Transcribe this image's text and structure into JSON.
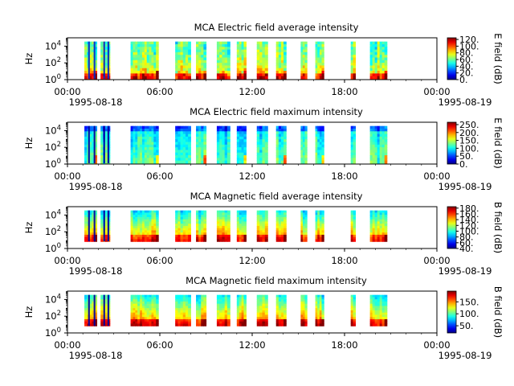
{
  "chart_data": [
    {
      "type": "heatmap",
      "title": "MCA  Electric field average intensity",
      "ylabel": "Hz",
      "yscale": "log",
      "y_tick_labels": [
        "10^0",
        "10^2",
        "10^4"
      ],
      "x_tick_labels": [
        "00:00",
        "06:00",
        "12:00",
        "18:00",
        "00:00"
      ],
      "x_date_labels": [
        "1995-08-18",
        "1995-08-19"
      ],
      "colorbar_label": "E field (dB)",
      "colorbar_ticks": [
        "0.",
        "20.",
        "40.",
        "60.",
        "80.",
        "100.",
        "120."
      ],
      "colorbar_range": [
        0,
        125
      ],
      "data_intervals_hours": [
        [
          1.1,
          1.9
        ],
        [
          2.15,
          2.75
        ],
        [
          4.1,
          5.9
        ],
        [
          7.0,
          8.0
        ],
        [
          8.35,
          9.0
        ],
        [
          9.7,
          10.55
        ],
        [
          11.0,
          11.6
        ],
        [
          12.3,
          13.0
        ],
        [
          13.55,
          14.2
        ],
        [
          15.15,
          15.55
        ],
        [
          16.1,
          16.65
        ],
        [
          18.4,
          18.7
        ],
        [
          19.65,
          20.75
        ]
      ],
      "cmap": "jet"
    },
    {
      "type": "heatmap",
      "title": "MCA  Electric field maximum intensity",
      "ylabel": "Hz",
      "yscale": "log",
      "y_tick_labels": [
        "10^0",
        "10^2",
        "10^4"
      ],
      "x_tick_labels": [
        "00:00",
        "06:00",
        "12:00",
        "18:00",
        "00:00"
      ],
      "x_date_labels": [
        "1995-08-18",
        "1995-08-19"
      ],
      "colorbar_label": "E field (dB)",
      "colorbar_ticks": [
        "0.",
        "50.",
        "100.",
        "150.",
        "200.",
        "250."
      ],
      "colorbar_range": [
        0,
        265
      ],
      "data_intervals_hours": [
        [
          1.1,
          1.9
        ],
        [
          2.15,
          2.75
        ],
        [
          4.1,
          5.9
        ],
        [
          7.0,
          8.0
        ],
        [
          8.35,
          9.0
        ],
        [
          9.7,
          10.55
        ],
        [
          11.0,
          11.6
        ],
        [
          12.3,
          13.0
        ],
        [
          13.55,
          14.2
        ],
        [
          15.15,
          15.55
        ],
        [
          16.1,
          16.65
        ],
        [
          18.4,
          18.7
        ],
        [
          19.65,
          20.75
        ]
      ],
      "cmap": "jet"
    },
    {
      "type": "heatmap",
      "title": "MCA  Magnetic field average intensity",
      "ylabel": "Hz",
      "yscale": "log",
      "y_tick_labels": [
        "10^0",
        "10^2",
        "10^4"
      ],
      "x_tick_labels": [
        "00:00",
        "06:00",
        "12:00",
        "18:00",
        "00:00"
      ],
      "x_date_labels": [
        "1995-08-18",
        "1995-08-19"
      ],
      "colorbar_label": "B field (dB)",
      "colorbar_ticks": [
        "40.",
        "60.",
        "80.",
        "100.",
        "120.",
        "140.",
        "160.",
        "180."
      ],
      "colorbar_range": [
        40,
        185
      ],
      "data_intervals_hours": [
        [
          1.1,
          1.9
        ],
        [
          2.15,
          2.75
        ],
        [
          4.1,
          5.9
        ],
        [
          7.0,
          8.0
        ],
        [
          8.35,
          9.0
        ],
        [
          9.7,
          10.55
        ],
        [
          11.0,
          11.6
        ],
        [
          12.3,
          13.0
        ],
        [
          13.55,
          14.2
        ],
        [
          15.15,
          15.55
        ],
        [
          16.1,
          16.65
        ],
        [
          18.4,
          18.7
        ],
        [
          19.65,
          20.75
        ]
      ],
      "cmap": "jet"
    },
    {
      "type": "heatmap",
      "title": "MCA  Magnetic field maximum intensity",
      "ylabel": "Hz",
      "yscale": "log",
      "y_tick_labels": [
        "10^0",
        "10^2",
        "10^4"
      ],
      "x_tick_labels": [
        "00:00",
        "06:00",
        "12:00",
        "18:00",
        "00:00"
      ],
      "x_date_labels": [
        "1995-08-18",
        "1995-08-19"
      ],
      "colorbar_label": "B field (dB)",
      "colorbar_ticks": [
        "50.",
        "100.",
        "150."
      ],
      "colorbar_range": [
        20,
        195
      ],
      "data_intervals_hours": [
        [
          1.1,
          1.9
        ],
        [
          2.15,
          2.75
        ],
        [
          4.1,
          5.9
        ],
        [
          7.0,
          8.0
        ],
        [
          8.35,
          9.0
        ],
        [
          9.7,
          10.55
        ],
        [
          11.0,
          11.6
        ],
        [
          12.3,
          13.0
        ],
        [
          13.55,
          14.2
        ],
        [
          15.15,
          15.55
        ],
        [
          16.1,
          16.65
        ],
        [
          18.4,
          18.7
        ],
        [
          19.65,
          20.75
        ]
      ],
      "cmap": "jet"
    }
  ]
}
